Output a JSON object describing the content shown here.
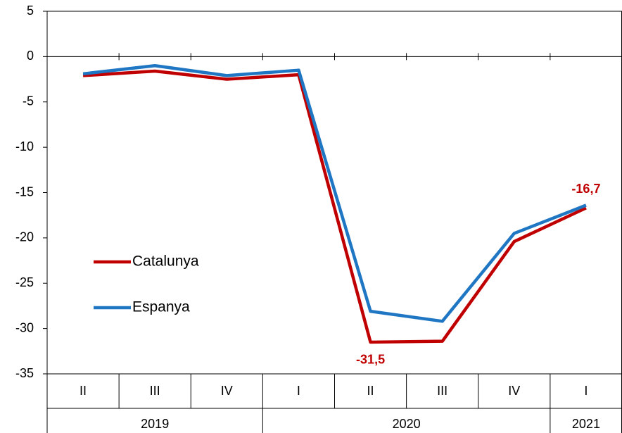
{
  "chart_data": {
    "type": "line",
    "categories": [
      "II",
      "III",
      "IV",
      "I",
      "II",
      "III",
      "IV",
      "I"
    ],
    "groups": [
      {
        "label": "2019",
        "count": 3
      },
      {
        "label": "2020",
        "count": 4
      },
      {
        "label": "2021",
        "count": 1
      }
    ],
    "series": [
      {
        "name": "Catalunya",
        "color": "#c00000",
        "values": [
          -2.1,
          -1.6,
          -2.5,
          -2.0,
          -31.5,
          -31.4,
          -20.4,
          -16.7
        ],
        "value_labels": [
          null,
          null,
          null,
          null,
          "-31,5",
          null,
          null,
          "-16,7"
        ]
      },
      {
        "name": "Espanya",
        "color": "#1f77c4",
        "values": [
          -1.9,
          -1.0,
          -2.1,
          -1.5,
          -28.1,
          -29.2,
          -19.5,
          -16.4
        ]
      }
    ],
    "ylim": [
      -35,
      5
    ],
    "yticks": [
      5,
      0,
      -5,
      -10,
      -15,
      -20,
      -25,
      -30,
      -35
    ],
    "grid": false,
    "legend": "center left"
  }
}
